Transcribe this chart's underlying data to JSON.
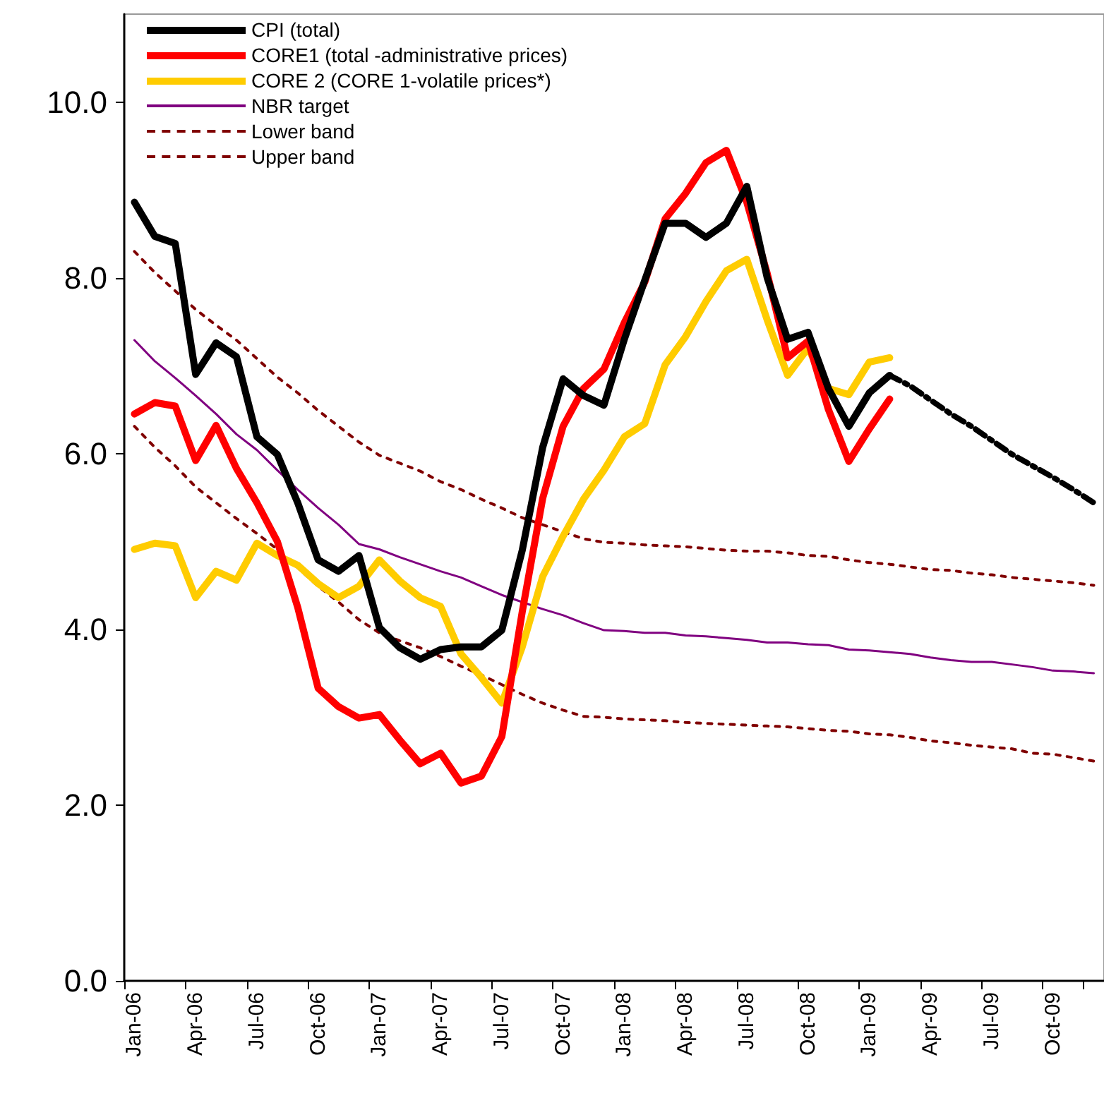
{
  "chart_data": {
    "type": "line",
    "categories": [
      "Jan-06",
      null,
      null,
      "Apr-06",
      null,
      null,
      "Jul-06",
      null,
      null,
      "Oct-06",
      null,
      null,
      "Jan-07",
      null,
      null,
      "Apr-07",
      null,
      null,
      "Jul-07",
      null,
      null,
      "Oct-07",
      null,
      null,
      "Jan-08",
      null,
      null,
      "Apr-08",
      null,
      null,
      "Jul-08",
      null,
      null,
      "Oct-08",
      null,
      null,
      "Jan-09",
      null,
      null,
      "Apr-09",
      null,
      null,
      "Jul-09",
      null,
      null,
      "Oct-09",
      null,
      null
    ],
    "ylim": [
      0,
      11
    ],
    "yticks": [
      {
        "value": 0,
        "label": "0.0"
      },
      {
        "value": 2,
        "label": "2.0"
      },
      {
        "value": 4,
        "label": "4.0"
      },
      {
        "value": 6,
        "label": "6.0"
      },
      {
        "value": 8,
        "label": "8.0"
      },
      {
        "value": 10,
        "label": "10.0"
      }
    ],
    "grid": false,
    "legend": "top left",
    "marker": "none",
    "line_style": "solid",
    "series": [
      {
        "name": "CPI (total)",
        "color": "#000000",
        "values": [
          8.86,
          8.47,
          8.39,
          6.9,
          7.26,
          7.1,
          6.19,
          5.99,
          5.44,
          4.79,
          4.66,
          4.84,
          4.02,
          3.79,
          3.66,
          3.77,
          3.8,
          3.8,
          3.99,
          4.9,
          6.07,
          6.85,
          6.66,
          6.55,
          7.3,
          7.97,
          8.62,
          8.62,
          8.46,
          8.62,
          9.04,
          8.0,
          7.3,
          7.38,
          6.74,
          6.31,
          6.69,
          6.89,
          null,
          null,
          null,
          null,
          null,
          null,
          null,
          null,
          null,
          null
        ]
      },
      {
        "name": "CORE1 (total -administrative prices)",
        "color": "#ff0000",
        "values": [
          6.45,
          6.58,
          6.54,
          5.92,
          6.32,
          5.83,
          5.44,
          5.0,
          4.25,
          3.33,
          3.12,
          2.99,
          3.03,
          2.74,
          2.47,
          2.59,
          2.25,
          2.33,
          2.78,
          4.2,
          5.49,
          6.31,
          6.74,
          6.96,
          7.49,
          7.95,
          8.67,
          8.96,
          9.31,
          9.45,
          8.86,
          8.05,
          7.09,
          7.28,
          6.5,
          5.91,
          6.28,
          6.62,
          null,
          null,
          null,
          null,
          null,
          null,
          null,
          null,
          null,
          null
        ]
      },
      {
        "name": "CORE 2 (CORE 1-volatile prices*)",
        "color": "#ffcc00",
        "values": [
          4.91,
          4.98,
          4.95,
          4.36,
          4.66,
          4.56,
          4.98,
          4.84,
          4.73,
          4.52,
          4.36,
          4.49,
          4.79,
          4.55,
          4.36,
          4.26,
          3.72,
          3.45,
          3.16,
          3.8,
          4.6,
          5.06,
          5.48,
          5.81,
          6.19,
          6.34,
          7.01,
          7.33,
          7.73,
          8.08,
          8.21,
          7.52,
          6.89,
          7.2,
          6.74,
          6.67,
          7.04,
          7.09,
          null,
          null,
          null,
          null,
          null,
          null,
          null,
          null,
          null,
          null
        ]
      },
      {
        "name": "NBR target",
        "color": "#800080",
        "values": [
          7.29,
          7.05,
          6.86,
          6.66,
          6.45,
          6.22,
          6.04,
          5.81,
          5.59,
          5.38,
          5.19,
          4.97,
          4.91,
          4.82,
          4.74,
          4.66,
          4.59,
          4.49,
          4.39,
          4.31,
          4.23,
          4.16,
          4.07,
          3.99,
          3.98,
          3.96,
          3.96,
          3.93,
          3.92,
          3.9,
          3.88,
          3.85,
          3.85,
          3.83,
          3.82,
          3.77,
          3.76,
          3.74,
          3.72,
          3.68,
          3.65,
          3.63,
          3.63,
          3.6,
          3.57,
          3.53,
          3.52,
          3.5
        ]
      },
      {
        "name": "Lower band",
        "color": "#800000",
        "line_style": "dotted",
        "values": [
          6.31,
          6.07,
          5.86,
          5.62,
          5.44,
          5.26,
          5.09,
          4.91,
          4.7,
          4.49,
          4.31,
          4.11,
          3.96,
          3.87,
          3.79,
          3.69,
          3.58,
          3.48,
          3.37,
          3.26,
          3.16,
          3.08,
          3.01,
          3.0,
          2.98,
          2.97,
          2.96,
          2.94,
          2.93,
          2.92,
          2.91,
          2.9,
          2.89,
          2.87,
          2.85,
          2.84,
          2.81,
          2.8,
          2.77,
          2.73,
          2.71,
          2.68,
          2.66,
          2.64,
          2.59,
          2.58,
          2.54,
          2.5
        ]
      },
      {
        "name": "Upper band",
        "color": "#800000",
        "line_style": "dotted",
        "values": [
          8.3,
          8.06,
          7.85,
          7.64,
          7.46,
          7.29,
          7.08,
          6.87,
          6.69,
          6.49,
          6.31,
          6.13,
          5.98,
          5.89,
          5.8,
          5.68,
          5.59,
          5.48,
          5.38,
          5.27,
          5.19,
          5.11,
          5.03,
          4.99,
          4.98,
          4.96,
          4.95,
          4.94,
          4.92,
          4.9,
          4.89,
          4.89,
          4.87,
          4.84,
          4.83,
          4.79,
          4.76,
          4.74,
          4.71,
          4.68,
          4.67,
          4.64,
          4.62,
          4.59,
          4.57,
          4.55,
          4.53,
          4.5
        ]
      },
      {
        "color": "#000000",
        "line_style": "dashed",
        "values": [
          null,
          null,
          null,
          null,
          null,
          null,
          null,
          null,
          null,
          null,
          null,
          null,
          null,
          null,
          null,
          null,
          null,
          null,
          null,
          null,
          null,
          null,
          null,
          null,
          null,
          null,
          null,
          null,
          null,
          null,
          null,
          null,
          null,
          null,
          null,
          null,
          null,
          6.89,
          6.77,
          6.61,
          6.45,
          6.31,
          6.15,
          5.99,
          5.86,
          5.73,
          5.59,
          5.44
        ]
      }
    ]
  }
}
